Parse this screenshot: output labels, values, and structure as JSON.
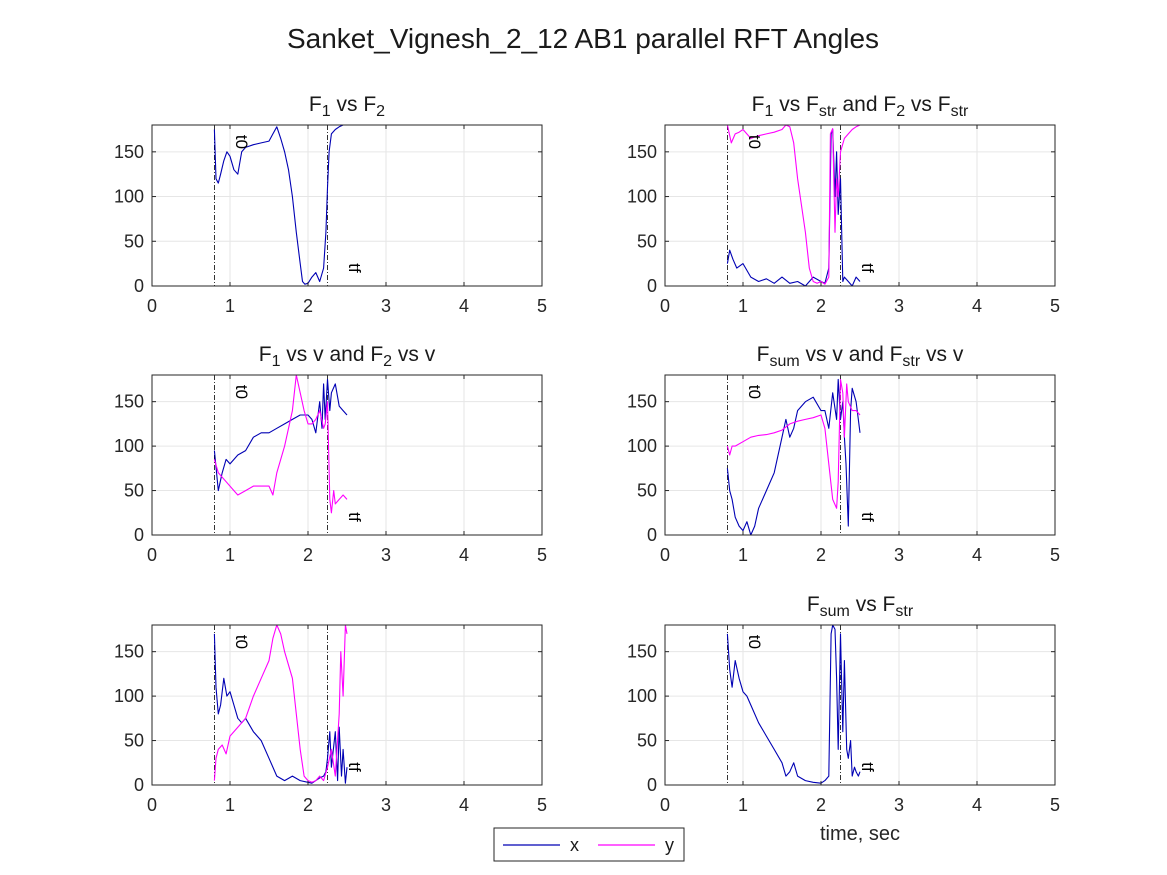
{
  "figure": {
    "title": "Sanket_Vignesh_2_12 AB1 parallel RFT Angles",
    "colors": {
      "x": "#0000b4",
      "y": "#ff00ff",
      "axis": "#262626",
      "grid": "#e6e6e6",
      "marker": "#000000"
    }
  },
  "legend": {
    "items": [
      {
        "key": "x",
        "label": "x",
        "color": "#0000b4"
      },
      {
        "key": "y",
        "label": "y",
        "color": "#ff00ff"
      }
    ],
    "placement": "bottom-center"
  },
  "chart_data": [
    {
      "type": "line",
      "title_parts": [
        {
          "t": "F"
        },
        {
          "t": "1",
          "sub": true
        },
        {
          "t": " vs F"
        },
        {
          "t": "2",
          "sub": true
        }
      ],
      "xlim": [
        0,
        5
      ],
      "ylim": [
        0,
        180
      ],
      "xticks": [
        0,
        1,
        2,
        3,
        4,
        5
      ],
      "yticks": [
        0,
        50,
        100,
        150
      ],
      "grid": true,
      "xlabel": "",
      "markers": [
        {
          "x": 0.8,
          "label": "t0",
          "label_pos": "top"
        },
        {
          "x": 2.25,
          "label": "tf",
          "label_pos": "bottom"
        }
      ],
      "series": [
        {
          "key": "x",
          "x": [
            0.8,
            0.82,
            0.85,
            0.88,
            0.92,
            0.96,
            1.0,
            1.05,
            1.1,
            1.15,
            1.2,
            1.3,
            1.4,
            1.5,
            1.55,
            1.6,
            1.65,
            1.7,
            1.75,
            1.8,
            1.85,
            1.9,
            1.93,
            1.96,
            2.0,
            2.05,
            2.1,
            2.15,
            2.2,
            2.23,
            2.25,
            2.27,
            2.3,
            2.35,
            2.4,
            2.45,
            2.5
          ],
          "y": [
            175,
            120,
            115,
            125,
            140,
            150,
            145,
            130,
            125,
            150,
            155,
            158,
            160,
            162,
            170,
            178,
            165,
            150,
            130,
            100,
            60,
            25,
            5,
            2,
            3,
            10,
            15,
            5,
            20,
            60,
            110,
            150,
            170,
            175,
            178,
            180,
            180
          ]
        }
      ]
    },
    {
      "type": "line",
      "title_parts": [
        {
          "t": "F"
        },
        {
          "t": "1",
          "sub": true
        },
        {
          "t": " vs F"
        },
        {
          "t": "str",
          "sub": true
        },
        {
          "t": " and F"
        },
        {
          "t": "2",
          "sub": true
        },
        {
          "t": " vs F"
        },
        {
          "t": "str",
          "sub": true
        }
      ],
      "xlim": [
        0,
        5
      ],
      "ylim": [
        0,
        180
      ],
      "xticks": [
        0,
        1,
        2,
        3,
        4,
        5
      ],
      "yticks": [
        0,
        50,
        100,
        150
      ],
      "grid": true,
      "xlabel": "",
      "markers": [
        {
          "x": 0.8,
          "label": "t0",
          "label_pos": "top"
        },
        {
          "x": 2.25,
          "label": "tf",
          "label_pos": "bottom"
        }
      ],
      "series": [
        {
          "key": "x",
          "x": [
            0.8,
            0.83,
            0.87,
            0.92,
            1.0,
            1.1,
            1.2,
            1.3,
            1.4,
            1.5,
            1.6,
            1.7,
            1.8,
            1.9,
            2.0,
            2.05,
            2.1,
            2.13,
            2.15,
            2.18,
            2.2,
            2.22,
            2.25,
            2.28,
            2.3,
            2.35,
            2.4,
            2.45,
            2.5
          ],
          "y": [
            25,
            40,
            30,
            20,
            25,
            10,
            5,
            8,
            3,
            10,
            3,
            5,
            0,
            10,
            5,
            3,
            20,
            170,
            175,
            100,
            150,
            80,
            120,
            5,
            10,
            5,
            0,
            10,
            5
          ]
        },
        {
          "key": "y",
          "x": [
            0.8,
            0.85,
            0.9,
            0.95,
            1.0,
            1.1,
            1.2,
            1.3,
            1.4,
            1.5,
            1.55,
            1.6,
            1.65,
            1.7,
            1.8,
            1.85,
            1.9,
            1.95,
            2.0,
            2.05,
            2.1,
            2.12,
            2.15,
            2.18,
            2.2,
            2.22,
            2.25,
            2.3,
            2.35,
            2.4,
            2.45,
            2.5
          ],
          "y": [
            180,
            160,
            170,
            172,
            175,
            165,
            168,
            170,
            172,
            175,
            180,
            178,
            160,
            120,
            60,
            20,
            5,
            3,
            5,
            2,
            10,
            170,
            176,
            60,
            120,
            100,
            150,
            165,
            170,
            175,
            178,
            180
          ]
        }
      ]
    },
    {
      "type": "line",
      "title_parts": [
        {
          "t": "F"
        },
        {
          "t": "1",
          "sub": true
        },
        {
          "t": " vs v and F"
        },
        {
          "t": "2",
          "sub": true
        },
        {
          "t": " vs v"
        }
      ],
      "xlim": [
        0,
        5
      ],
      "ylim": [
        0,
        180
      ],
      "xticks": [
        0,
        1,
        2,
        3,
        4,
        5
      ],
      "yticks": [
        0,
        50,
        100,
        150
      ],
      "grid": true,
      "xlabel": "",
      "markers": [
        {
          "x": 0.8,
          "label": "t0",
          "label_pos": "top"
        },
        {
          "x": 2.25,
          "label": "tf",
          "label_pos": "bottom"
        }
      ],
      "series": [
        {
          "key": "x",
          "x": [
            0.8,
            0.85,
            0.9,
            0.95,
            1.0,
            1.1,
            1.2,
            1.3,
            1.4,
            1.5,
            1.6,
            1.7,
            1.8,
            1.9,
            2.0,
            2.05,
            2.1,
            2.15,
            2.18,
            2.2,
            2.22,
            2.25,
            2.28,
            2.3,
            2.35,
            2.4,
            2.45,
            2.5
          ],
          "y": [
            95,
            50,
            70,
            85,
            80,
            90,
            95,
            110,
            115,
            115,
            120,
            125,
            130,
            135,
            135,
            130,
            115,
            150,
            120,
            170,
            130,
            175,
            140,
            160,
            170,
            145,
            140,
            135
          ]
        },
        {
          "key": "y",
          "x": [
            0.8,
            0.85,
            0.9,
            0.95,
            1.0,
            1.05,
            1.1,
            1.2,
            1.3,
            1.4,
            1.5,
            1.55,
            1.6,
            1.7,
            1.8,
            1.85,
            1.9,
            1.95,
            2.0,
            2.05,
            2.1,
            2.15,
            2.2,
            2.22,
            2.25,
            2.28,
            2.3,
            2.33,
            2.35,
            2.4,
            2.45,
            2.5
          ],
          "y": [
            85,
            70,
            65,
            60,
            55,
            50,
            45,
            50,
            55,
            55,
            55,
            45,
            70,
            100,
            140,
            180,
            160,
            140,
            125,
            125,
            130,
            140,
            120,
            125,
            150,
            40,
            25,
            50,
            35,
            40,
            45,
            40
          ]
        }
      ]
    },
    {
      "type": "line",
      "title_parts": [
        {
          "t": "F"
        },
        {
          "t": "sum",
          "sub": true
        },
        {
          "t": " vs v and F"
        },
        {
          "t": "str",
          "sub": true
        },
        {
          "t": " vs v"
        }
      ],
      "xlim": [
        0,
        5
      ],
      "ylim": [
        0,
        180
      ],
      "xticks": [
        0,
        1,
        2,
        3,
        4,
        5
      ],
      "yticks": [
        0,
        50,
        100,
        150
      ],
      "grid": true,
      "xlabel": "",
      "markers": [
        {
          "x": 0.8,
          "label": "t0",
          "label_pos": "top"
        },
        {
          "x": 2.25,
          "label": "tf",
          "label_pos": "bottom"
        }
      ],
      "series": [
        {
          "key": "x",
          "x": [
            0.8,
            0.83,
            0.86,
            0.9,
            0.95,
            1.0,
            1.05,
            1.1,
            1.15,
            1.2,
            1.3,
            1.4,
            1.5,
            1.55,
            1.6,
            1.65,
            1.7,
            1.8,
            1.9,
            2.0,
            2.05,
            2.1,
            2.15,
            2.2,
            2.22,
            2.25,
            2.28,
            2.3,
            2.32,
            2.35,
            2.38,
            2.4,
            2.45,
            2.5
          ],
          "y": [
            75,
            50,
            40,
            20,
            10,
            5,
            15,
            0,
            10,
            30,
            50,
            70,
            110,
            130,
            110,
            120,
            140,
            150,
            155,
            140,
            140,
            120,
            160,
            130,
            175,
            130,
            150,
            110,
            80,
            10,
            140,
            165,
            150,
            115
          ]
        },
        {
          "key": "y",
          "x": [
            0.8,
            0.83,
            0.86,
            0.9,
            1.0,
            1.1,
            1.2,
            1.3,
            1.4,
            1.5,
            1.6,
            1.7,
            1.8,
            1.9,
            2.0,
            2.05,
            2.1,
            2.15,
            2.2,
            2.22,
            2.25,
            2.28,
            2.3,
            2.33,
            2.35,
            2.4,
            2.45,
            2.5
          ],
          "y": [
            100,
            90,
            100,
            100,
            105,
            110,
            112,
            113,
            115,
            118,
            125,
            128,
            130,
            132,
            135,
            120,
            80,
            40,
            30,
            60,
            175,
            160,
            110,
            170,
            150,
            140,
            140,
            135
          ]
        }
      ]
    },
    {
      "type": "line",
      "title_parts": [],
      "xlim": [
        0,
        5
      ],
      "ylim": [
        0,
        180
      ],
      "xticks": [
        0,
        1,
        2,
        3,
        4,
        5
      ],
      "yticks": [
        0,
        50,
        100,
        150
      ],
      "grid": true,
      "xlabel": "",
      "markers": [
        {
          "x": 0.8,
          "label": "t0",
          "label_pos": "top"
        },
        {
          "x": 2.25,
          "label": "tf",
          "label_pos": "bottom"
        }
      ],
      "series": [
        {
          "key": "x",
          "x": [
            0.8,
            0.82,
            0.85,
            0.88,
            0.92,
            0.96,
            1.0,
            1.05,
            1.1,
            1.15,
            1.2,
            1.3,
            1.4,
            1.5,
            1.6,
            1.7,
            1.8,
            1.9,
            2.0,
            2.05,
            2.1,
            2.15,
            2.2,
            2.23,
            2.25,
            2.28,
            2.3,
            2.35,
            2.38,
            2.4,
            2.43,
            2.45,
            2.48,
            2.5
          ],
          "y": [
            170,
            110,
            80,
            90,
            120,
            100,
            105,
            90,
            75,
            70,
            75,
            60,
            50,
            30,
            10,
            5,
            10,
            5,
            3,
            2,
            5,
            8,
            10,
            15,
            30,
            60,
            20,
            60,
            5,
            65,
            10,
            40,
            2,
            20
          ]
        },
        {
          "key": "y",
          "x": [
            0.8,
            0.82,
            0.85,
            0.9,
            0.95,
            1.0,
            1.1,
            1.2,
            1.3,
            1.4,
            1.5,
            1.55,
            1.6,
            1.65,
            1.7,
            1.8,
            1.85,
            1.9,
            1.95,
            2.0,
            2.05,
            2.1,
            2.15,
            2.2,
            2.25,
            2.3,
            2.35,
            2.4,
            2.42,
            2.45,
            2.48,
            2.5
          ],
          "y": [
            5,
            30,
            40,
            45,
            35,
            55,
            65,
            75,
            100,
            120,
            140,
            165,
            180,
            170,
            150,
            120,
            80,
            40,
            10,
            5,
            3,
            5,
            10,
            5,
            20,
            40,
            10,
            80,
            150,
            100,
            180,
            170
          ]
        }
      ]
    },
    {
      "type": "line",
      "title_parts": [
        {
          "t": "F"
        },
        {
          "t": "sum",
          "sub": true
        },
        {
          "t": " vs F"
        },
        {
          "t": "str",
          "sub": true
        }
      ],
      "xlim": [
        0,
        5
      ],
      "ylim": [
        0,
        180
      ],
      "xticks": [
        0,
        1,
        2,
        3,
        4,
        5
      ],
      "yticks": [
        0,
        50,
        100,
        150
      ],
      "grid": true,
      "xlabel": "time, sec",
      "markers": [
        {
          "x": 0.8,
          "label": "t0",
          "label_pos": "top"
        },
        {
          "x": 2.25,
          "label": "tf",
          "label_pos": "bottom"
        }
      ],
      "series": [
        {
          "key": "x",
          "x": [
            0.8,
            0.83,
            0.86,
            0.9,
            0.95,
            1.0,
            1.05,
            1.1,
            1.2,
            1.3,
            1.4,
            1.5,
            1.55,
            1.6,
            1.65,
            1.7,
            1.8,
            1.9,
            2.0,
            2.05,
            2.1,
            2.13,
            2.15,
            2.18,
            2.2,
            2.22,
            2.25,
            2.28,
            2.3,
            2.33,
            2.35,
            2.38,
            2.4,
            2.43,
            2.45,
            2.48,
            2.5
          ],
          "y": [
            170,
            130,
            110,
            140,
            120,
            105,
            100,
            90,
            70,
            55,
            40,
            25,
            10,
            15,
            25,
            10,
            5,
            3,
            2,
            5,
            10,
            170,
            180,
            175,
            120,
            40,
            170,
            60,
            140,
            40,
            30,
            50,
            10,
            20,
            15,
            10,
            15
          ]
        }
      ]
    }
  ]
}
